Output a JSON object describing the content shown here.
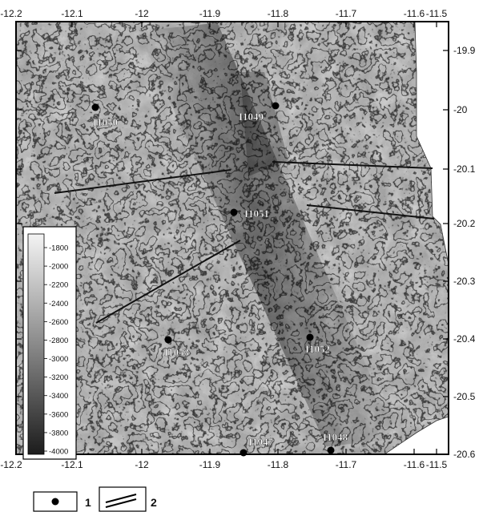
{
  "map": {
    "x_axis": {
      "ticks": [
        "-12.2",
        "-12.1",
        "-12",
        "-11.9",
        "-11.8",
        "-11.7",
        "-11.6",
        "-11.5"
      ]
    },
    "y_axis": {
      "ticks": [
        "-19.9",
        "-20",
        "-20.1",
        "-20.2",
        "-20.3",
        "-20.4",
        "-20.5",
        "-20.6"
      ]
    },
    "depth_scale": {
      "labels": [
        "-1800",
        "-2000",
        "-2200",
        "-2400",
        "-2600",
        "-2800",
        "-3000",
        "-3200",
        "-3400",
        "-3600",
        "-3800",
        "-4000"
      ],
      "colors": {
        "shallow": "#f4f4f4",
        "deep": "#1c1c1c"
      }
    },
    "stations": [
      {
        "label": "I1050"
      },
      {
        "label": "I1049"
      },
      {
        "label": "I1051"
      },
      {
        "label": "I1053"
      },
      {
        "label": "I1052"
      },
      {
        "label": "I1947"
      },
      {
        "label": "I1048"
      }
    ],
    "key": {
      "items": [
        {
          "label": "1",
          "icon": "station-dot-icon"
        },
        {
          "label": "2",
          "icon": "profile-lines-icon"
        }
      ]
    }
  }
}
